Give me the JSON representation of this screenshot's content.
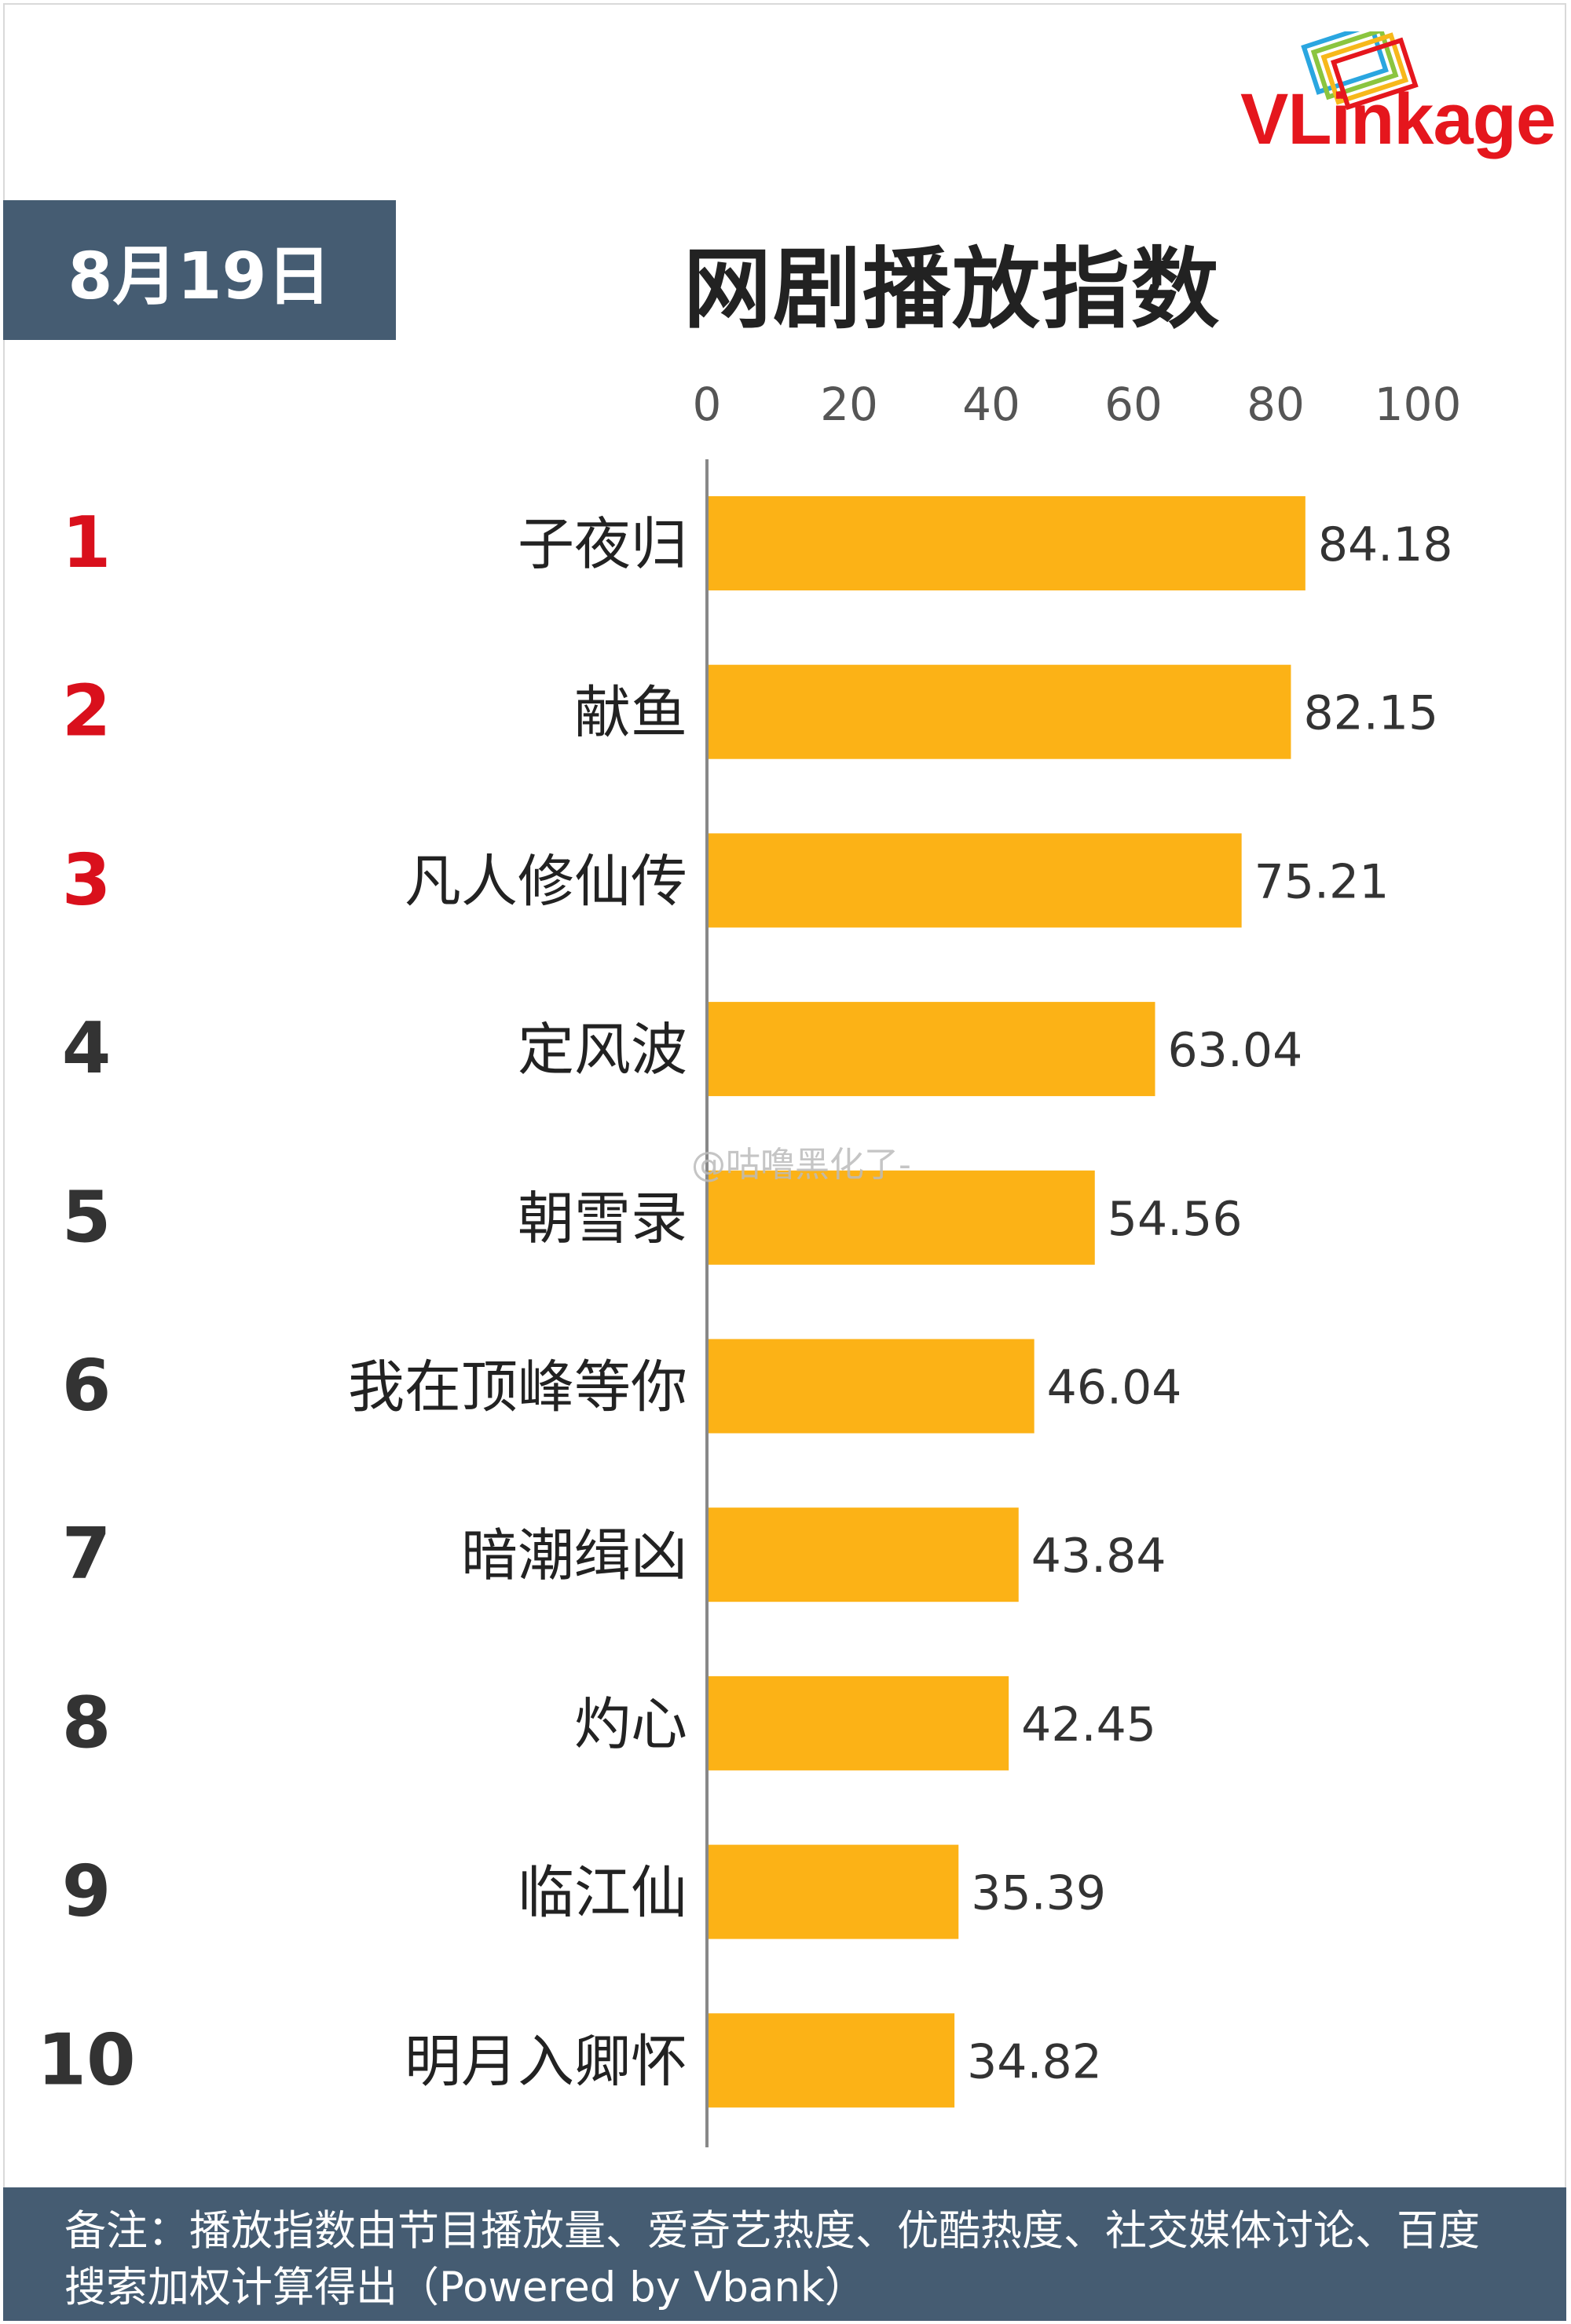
{
  "header": {
    "date": "8月19日",
    "title": "网剧播放指数",
    "brand": "VLinkage"
  },
  "watermark": "@咕噜黑化了-",
  "footer": {
    "note": "备注：播放指数由节目播放量、爱奇艺热度、优酷热度、社交媒体讨论、百度搜索加权计算得出（Powered by Vbank）"
  },
  "colors": {
    "bar": "#fcb216",
    "rank_top": "#d9101c",
    "rank_other": "#333333",
    "panel": "#455c72"
  },
  "chart_data": {
    "type": "bar",
    "orientation": "horizontal",
    "title": "网剧播放指数",
    "xlim": [
      0,
      100
    ],
    "xticks": [
      "0",
      "20",
      "40",
      "60",
      "80",
      "100"
    ],
    "ranks": [
      "1",
      "2",
      "3",
      "4",
      "5",
      "6",
      "7",
      "8",
      "9",
      "10"
    ],
    "categories": [
      "子夜归",
      "献鱼",
      "凡人修仙传",
      "定风波",
      "朝雪录",
      "我在顶峰等你",
      "暗潮缉凶",
      "灼心",
      "临江仙",
      "明月入卿怀"
    ],
    "values": [
      84.18,
      82.15,
      75.21,
      63.04,
      54.56,
      46.04,
      43.84,
      42.45,
      35.39,
      34.82
    ],
    "value_labels": [
      "84.18",
      "82.15",
      "75.21",
      "63.04",
      "54.56",
      "46.04",
      "43.84",
      "42.45",
      "35.39",
      "34.82"
    ],
    "grid": false,
    "legend": "none"
  }
}
